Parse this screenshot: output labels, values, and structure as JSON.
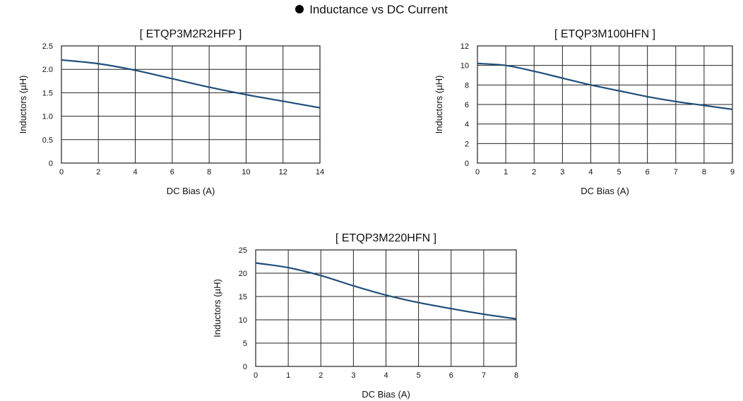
{
  "title": "Inductance vs DC Current",
  "colors": {
    "curve": "#1f4e79",
    "grid": "#222222"
  },
  "chart_data": [
    {
      "type": "line",
      "title": "[ ETQP3M2R2HFP ]",
      "xlabel": "DC Bias (A)",
      "ylabel": "Inductors (µH)",
      "xlim": [
        0,
        14
      ],
      "ylim": [
        0,
        2.5
      ],
      "xticks": [
        "0",
        "2",
        "4",
        "6",
        "8",
        "10",
        "12",
        "14"
      ],
      "yticks": [
        "0",
        "0.5",
        "1.0",
        "1.5",
        "2.0",
        "2.5"
      ],
      "grid": true,
      "x": [
        0,
        2,
        4,
        6,
        8,
        10,
        12,
        14
      ],
      "y": [
        2.2,
        2.12,
        1.98,
        1.8,
        1.62,
        1.46,
        1.32,
        1.18
      ]
    },
    {
      "type": "line",
      "title": "[ ETQP3M100HFN ]",
      "xlabel": "DC Bias (A)",
      "ylabel": "Inductors (µH)",
      "xlim": [
        0,
        9
      ],
      "ylim": [
        0,
        12
      ],
      "xticks": [
        "0",
        "1",
        "2",
        "3",
        "4",
        "5",
        "6",
        "7",
        "8",
        "9"
      ],
      "yticks": [
        "0",
        "2",
        "4",
        "6",
        "8",
        "10",
        "12"
      ],
      "grid": true,
      "x": [
        0,
        1,
        2,
        3,
        4,
        5,
        6,
        7,
        8,
        9
      ],
      "y": [
        10.2,
        10.0,
        9.4,
        8.7,
        8.0,
        7.4,
        6.8,
        6.3,
        5.9,
        5.5
      ]
    },
    {
      "type": "line",
      "title": "[ ETQP3M220HFN ]",
      "xlabel": "DC Bias (A)",
      "ylabel": "Inductors (µH)",
      "xlim": [
        0,
        8
      ],
      "ylim": [
        0,
        25
      ],
      "xticks": [
        "0",
        "1",
        "2",
        "3",
        "4",
        "5",
        "6",
        "7",
        "8"
      ],
      "yticks": [
        "0",
        "5",
        "10",
        "15",
        "20",
        "25"
      ],
      "grid": true,
      "x": [
        0,
        1,
        2,
        3,
        4,
        5,
        6,
        7,
        8
      ],
      "y": [
        22.2,
        21.2,
        19.5,
        17.3,
        15.3,
        13.7,
        12.4,
        11.2,
        10.2
      ]
    }
  ]
}
